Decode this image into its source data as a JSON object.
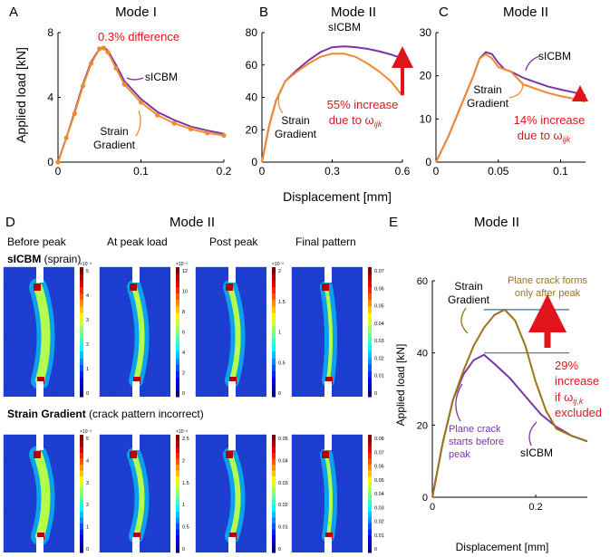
{
  "colors": {
    "sicbm": "#7b35a8",
    "strain": "#ef8a2e",
    "strain_brown": "#9a7416",
    "red": "#e0151b",
    "blue_line": "#2f6fc0",
    "mesh_bg": "#1f3fd6"
  },
  "panels": {
    "A": {
      "letter": "A",
      "title": "Mode I"
    },
    "B": {
      "letter": "B",
      "title": "Mode II"
    },
    "C": {
      "letter": "C",
      "title": "Mode II"
    },
    "D": {
      "letter": "D",
      "title": "Mode II"
    },
    "E": {
      "letter": "E",
      "title": "Mode II"
    }
  },
  "shared": {
    "ylabel_top": "Applied load [kN]",
    "xlabel_top": "Displacement [mm]"
  },
  "annotations": {
    "A_diff": "0.3% difference",
    "A_sicbm": "sICBM",
    "A_strain_1": "Strain",
    "A_strain_2": "Gradient",
    "B_sicbm": "sICBM",
    "B_strain_1": "Strain",
    "B_strain_2": "Gradient",
    "B_inc_1": "55% increase",
    "B_inc_2": "due to ω",
    "B_inc_sub": "ijk",
    "C_sicbm": "sICBM",
    "C_strain_1": "Strain",
    "C_strain_2": "Gradient",
    "C_inc_1": "14% increase",
    "C_inc_2": "due to ω",
    "C_inc_sub": "ijk",
    "E_strain_1": "Strain",
    "E_strain_2": "Gradient",
    "E_plane_1": "Plane crack forms",
    "E_plane_2": "only after peak",
    "E_inc_1": "29%",
    "E_inc_2": "increase",
    "E_inc_3": "if ω",
    "E_inc_sub": "ij,k",
    "E_inc_4": "excluded",
    "E_start_1": "Plane crack",
    "E_start_2": "starts before",
    "E_start_3": "peak",
    "E_sicbm": "sICBM"
  },
  "field_panel": {
    "stages": [
      "Before peak",
      "At peak load",
      "Post peak",
      "Final pattern"
    ],
    "row1_label_bold": "sICBM",
    "row1_label_rest": " (sprain)",
    "row2_label_bold": "Strain Gradient",
    "row2_label_rest": " (crack pattern incorrect)",
    "row1_scales": [
      "×10⁻³",
      "×10⁻³",
      "×10⁻²",
      ""
    ],
    "row2_scales": [
      "×10⁻³",
      "×10⁻³",
      "",
      ""
    ],
    "row1_ticks": [
      [
        "5",
        "4",
        "3",
        "2",
        "1",
        "0"
      ],
      [
        "12",
        "10",
        "8",
        "6",
        "4",
        "2",
        "0"
      ],
      [
        "2",
        "1.5",
        "1",
        "0.5",
        "0"
      ],
      [
        "0.07",
        "0.06",
        "0.05",
        "0.04",
        "0.03",
        "0.02",
        "0.01",
        "0"
      ]
    ],
    "row2_ticks": [
      [
        "5",
        "4",
        "3",
        "2",
        "1",
        "0"
      ],
      [
        "2.5",
        "2",
        "1.5",
        "1",
        "0.5",
        "0"
      ],
      [
        "0.05",
        "0.04",
        "0.03",
        "0.02",
        "0.01",
        "0"
      ],
      [
        "0.08",
        "0.07",
        "0.06",
        "0.05",
        "0.04",
        "0.03",
        "0.02",
        "0.01",
        "0"
      ]
    ]
  },
  "chart_data": [
    {
      "panel": "A",
      "type": "line",
      "title": "Mode I",
      "xlim": [
        0,
        0.2
      ],
      "ylim": [
        0,
        8
      ],
      "xticks": [
        "0",
        "0.1",
        "0.2"
      ],
      "xtick_values": [
        0,
        0.1,
        0.2
      ],
      "yticks": [
        "0",
        "4",
        "8"
      ],
      "ytick_values": [
        0,
        4,
        8
      ],
      "series": [
        {
          "name": "sICBM",
          "color": "#7b35a8",
          "x": [
            0,
            0.01,
            0.02,
            0.03,
            0.04,
            0.05,
            0.055,
            0.06,
            0.07,
            0.08,
            0.1,
            0.12,
            0.14,
            0.16,
            0.18,
            0.2
          ],
          "y": [
            0,
            1.5,
            3.1,
            4.8,
            6.2,
            7.0,
            7.1,
            6.9,
            6.0,
            5.0,
            3.9,
            3.1,
            2.6,
            2.2,
            1.95,
            1.75
          ]
        },
        {
          "name": "Strain Gradient",
          "color": "#ef8a2e",
          "x": [
            0,
            0.01,
            0.02,
            0.03,
            0.04,
            0.05,
            0.055,
            0.06,
            0.07,
            0.08,
            0.1,
            0.12,
            0.14,
            0.16,
            0.18,
            0.2
          ],
          "y": [
            0,
            1.5,
            3.0,
            4.7,
            6.1,
            7.0,
            7.05,
            6.8,
            5.8,
            4.8,
            3.7,
            2.9,
            2.4,
            2.05,
            1.8,
            1.65
          ]
        }
      ]
    },
    {
      "panel": "B",
      "type": "line",
      "title": "Mode II",
      "xlim": [
        0,
        0.6
      ],
      "ylim": [
        0,
        80
      ],
      "xticks": [
        "0",
        "0.3",
        "0.6"
      ],
      "xtick_values": [
        0,
        0.3,
        0.6
      ],
      "yticks": [
        "0",
        "20",
        "40",
        "60",
        "80"
      ],
      "ytick_values": [
        0,
        20,
        40,
        60,
        80
      ],
      "series": [
        {
          "name": "sICBM",
          "color": "#7b35a8",
          "x": [
            0,
            0.03,
            0.06,
            0.1,
            0.15,
            0.2,
            0.25,
            0.3,
            0.35,
            0.4,
            0.45,
            0.5,
            0.55,
            0.6
          ],
          "y": [
            0,
            22,
            38,
            50,
            57,
            63,
            68,
            71,
            71.5,
            71,
            70,
            68.5,
            66.5,
            64
          ]
        },
        {
          "name": "Strain Gradient",
          "color": "#ef8a2e",
          "x": [
            0,
            0.03,
            0.06,
            0.1,
            0.15,
            0.2,
            0.25,
            0.3,
            0.35,
            0.4,
            0.45,
            0.5,
            0.55,
            0.6
          ],
          "y": [
            0,
            22,
            38,
            50,
            56,
            61,
            65,
            67,
            67,
            65,
            61,
            56,
            50,
            41
          ]
        }
      ]
    },
    {
      "panel": "C",
      "type": "line",
      "title": "Mode II",
      "xlim": [
        0,
        0.12
      ],
      "ylim": [
        0,
        30
      ],
      "xticks": [
        "0",
        "0.05",
        "0.1"
      ],
      "xtick_values": [
        0,
        0.05,
        0.1
      ],
      "yticks": [
        "0",
        "10",
        "20",
        "30"
      ],
      "ytick_values": [
        0,
        10,
        20,
        30
      ],
      "series": [
        {
          "name": "sICBM",
          "color": "#7b35a8",
          "x": [
            0,
            0.01,
            0.02,
            0.03,
            0.035,
            0.04,
            0.045,
            0.05,
            0.055,
            0.06,
            0.07,
            0.08,
            0.09,
            0.1,
            0.11,
            0.12
          ],
          "y": [
            0,
            6,
            13,
            20,
            24,
            25.5,
            25,
            23,
            21.5,
            21,
            19.5,
            18.5,
            17.5,
            16.8,
            16.2,
            15.5
          ]
        },
        {
          "name": "Strain Gradient",
          "color": "#ef8a2e",
          "x": [
            0,
            0.01,
            0.02,
            0.03,
            0.035,
            0.04,
            0.045,
            0.05,
            0.055,
            0.06,
            0.07,
            0.08,
            0.09,
            0.1,
            0.11,
            0.12
          ],
          "y": [
            0,
            6,
            13,
            20,
            24,
            25,
            24,
            22,
            21.5,
            21,
            18,
            17,
            16,
            15.3,
            14.7,
            14
          ]
        }
      ]
    },
    {
      "panel": "E",
      "type": "line",
      "title": "Mode II",
      "xlabel": "Displacement [mm]",
      "ylabel": "Applied load [kN]",
      "xlim": [
        0,
        0.3
      ],
      "ylim": [
        0,
        60
      ],
      "xticks": [
        "0",
        "0.2"
      ],
      "xtick_values": [
        0,
        0.2
      ],
      "yticks": [
        "0",
        "20",
        "40",
        "60"
      ],
      "ytick_values": [
        0,
        20,
        40,
        60
      ],
      "hlines": [
        40,
        52
      ],
      "series": [
        {
          "name": "sICBM",
          "color": "#7b35a8",
          "x": [
            0,
            0.02,
            0.04,
            0.06,
            0.08,
            0.1,
            0.12,
            0.15,
            0.18,
            0.21,
            0.24,
            0.27,
            0.3
          ],
          "y": [
            0,
            15,
            27,
            34,
            38,
            39.5,
            37,
            33,
            28,
            23,
            19.5,
            17,
            15.5
          ]
        },
        {
          "name": "Strain Gradient",
          "color": "#9a7416",
          "x": [
            0,
            0.02,
            0.04,
            0.06,
            0.08,
            0.1,
            0.12,
            0.14,
            0.16,
            0.18,
            0.2,
            0.22,
            0.24,
            0.27,
            0.3
          ],
          "y": [
            0,
            15,
            27,
            35,
            42,
            47,
            50.5,
            52,
            49,
            42,
            32,
            24,
            19,
            17,
            15.5
          ]
        }
      ]
    }
  ]
}
